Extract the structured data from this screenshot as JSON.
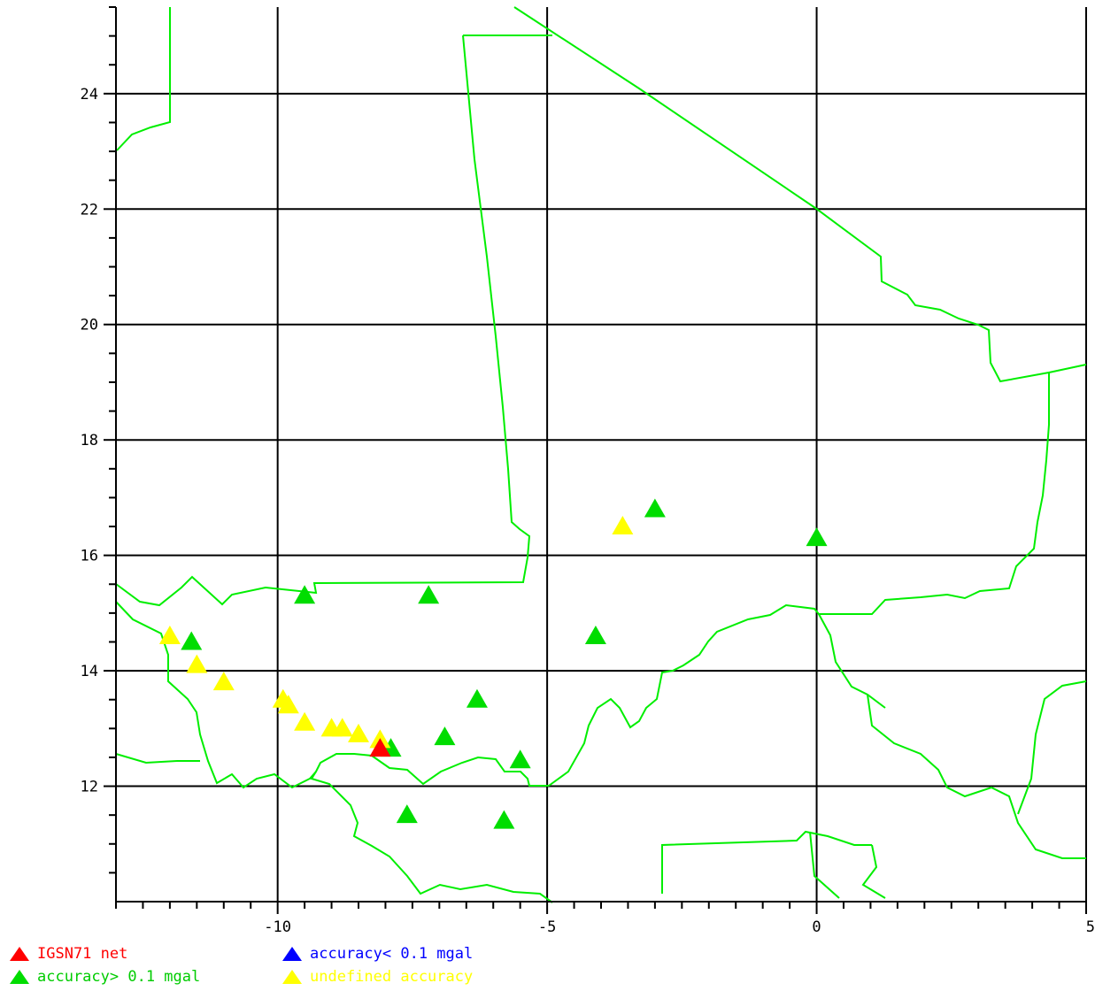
{
  "map": {
    "lon_range": [
      -13,
      5
    ],
    "lat_range": [
      10,
      25.5
    ],
    "grid_lon": [
      -10,
      -5,
      0,
      5
    ],
    "grid_lat": [
      12,
      14,
      16,
      18,
      20,
      22,
      24
    ],
    "x_tick_labels": [
      "-10",
      "-5",
      "0",
      "5"
    ],
    "y_tick_labels": [
      "12",
      "14",
      "16",
      "18",
      "20",
      "22",
      "24"
    ],
    "colors": {
      "border": "#00ee00",
      "grid": "#000000",
      "igsn71": "#ff0000",
      "acc_lt": "#0000ff",
      "acc_gt": "#00dd00",
      "undefined": "#ffff00"
    }
  },
  "legend": {
    "igsn71": "IGSN71 net",
    "acc_lt": "accuracy< 0.1 mgal",
    "acc_gt": "accuracy> 0.1 mgal",
    "undefined": "undefined accuracy"
  },
  "stations": [
    {
      "lon": -9.5,
      "lat": 15.3,
      "type": "acc_gt"
    },
    {
      "lon": -7.2,
      "lat": 15.3,
      "type": "acc_gt"
    },
    {
      "lon": -11.6,
      "lat": 14.5,
      "type": "acc_gt"
    },
    {
      "lon": -4.1,
      "lat": 14.6,
      "type": "acc_gt"
    },
    {
      "lon": -3.0,
      "lat": 16.8,
      "type": "acc_gt"
    },
    {
      "lon": 0.0,
      "lat": 16.3,
      "type": "acc_gt"
    },
    {
      "lon": -6.3,
      "lat": 13.5,
      "type": "acc_gt"
    },
    {
      "lon": -6.9,
      "lat": 12.85,
      "type": "acc_gt"
    },
    {
      "lon": -5.5,
      "lat": 12.45,
      "type": "acc_gt"
    },
    {
      "lon": -7.9,
      "lat": 12.65,
      "type": "acc_gt"
    },
    {
      "lon": -7.6,
      "lat": 11.5,
      "type": "acc_gt"
    },
    {
      "lon": -5.8,
      "lat": 11.4,
      "type": "acc_gt"
    },
    {
      "lon": -3.6,
      "lat": 16.5,
      "type": "undefined"
    },
    {
      "lon": -12.0,
      "lat": 14.6,
      "type": "undefined"
    },
    {
      "lon": -11.5,
      "lat": 14.1,
      "type": "undefined"
    },
    {
      "lon": -11.0,
      "lat": 13.8,
      "type": "undefined"
    },
    {
      "lon": -9.9,
      "lat": 13.5,
      "type": "undefined"
    },
    {
      "lon": -9.8,
      "lat": 13.4,
      "type": "undefined"
    },
    {
      "lon": -9.5,
      "lat": 13.1,
      "type": "undefined"
    },
    {
      "lon": -9.0,
      "lat": 13.0,
      "type": "undefined"
    },
    {
      "lon": -8.8,
      "lat": 13.0,
      "type": "undefined"
    },
    {
      "lon": -8.5,
      "lat": 12.9,
      "type": "undefined"
    },
    {
      "lon": -8.1,
      "lat": 12.8,
      "type": "undefined"
    },
    {
      "lon": -8.1,
      "lat": 12.65,
      "type": "igsn71"
    }
  ]
}
